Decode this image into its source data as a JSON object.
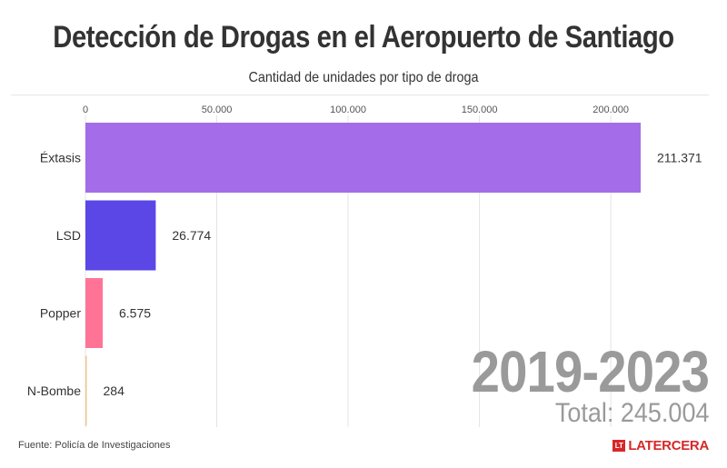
{
  "header": {
    "title": "Detección de Drogas en el Aeropuerto de Santiago",
    "subtitle": "Cantidad de unidades por tipo de droga"
  },
  "chart_data": {
    "type": "bar",
    "orientation": "horizontal",
    "title": "Detección de Drogas en el Aeropuerto de Santiago",
    "subtitle": "Cantidad de unidades por tipo de droga",
    "categories": [
      "Éxtasis",
      "LSD",
      "Popper",
      "N-Bombe"
    ],
    "values": [
      211371,
      26774,
      6575,
      284
    ],
    "value_labels": [
      "211.371",
      "26.774",
      "6.575",
      "284"
    ],
    "colors": [
      "#a46ce8",
      "#5b47e6",
      "#ff7496",
      "#f2c48c"
    ],
    "xlim": [
      0,
      211371
    ],
    "xticks": [
      0,
      50000,
      100000,
      150000,
      200000
    ],
    "xtick_labels": [
      "0",
      "50.000",
      "100.000",
      "150.000",
      "200.000"
    ],
    "xaxis_position": "top",
    "grid": true,
    "xlabel": "",
    "ylabel": ""
  },
  "annotations": {
    "period": "2019-2023",
    "total": "Total: 245.004"
  },
  "footer": {
    "source": "Fuente: Policía de Investigaciones",
    "logo_mark": "LT",
    "logo_text": "LATERCERA"
  }
}
